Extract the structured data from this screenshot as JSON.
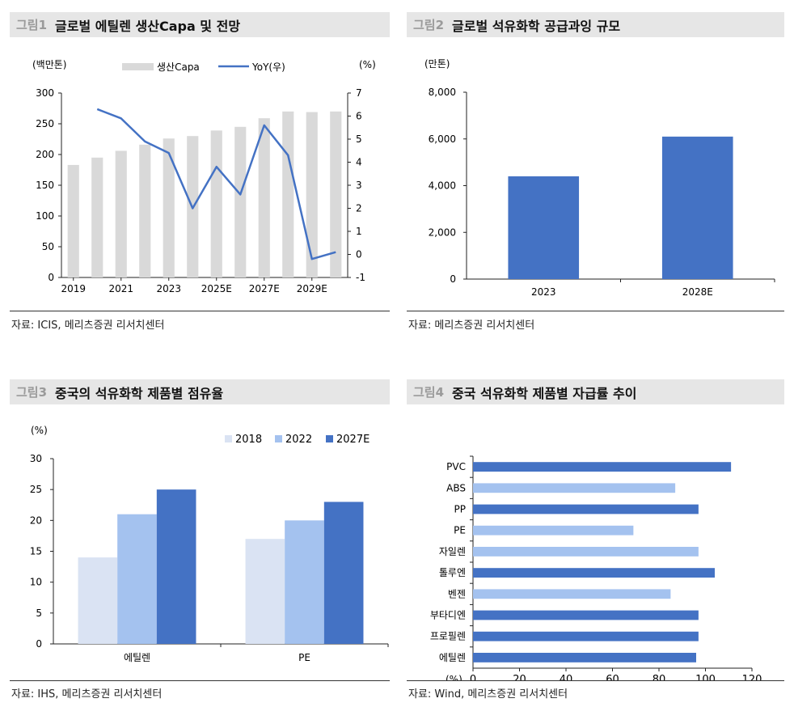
{
  "colors": {
    "capa_bar": "#d9d9d9",
    "yoy_line": "#4472c4",
    "bar_blue": "#4472c4",
    "c2018": "#dae3f3",
    "c2022": "#a4c2ef",
    "c2027": "#4472c4",
    "h_dark": "#4472c4",
    "h_light": "#a4c2ef"
  },
  "panels": [
    {
      "fig_num": "그림1",
      "title": "글로벌 에틸렌 생산Capa 및 전망",
      "source": "자료: ICIS, 메리츠증권 리서치센터"
    },
    {
      "fig_num": "그림2",
      "title": "글로벌 석유화학 공급과잉 규모",
      "source": "자료: 메리츠증권 리서치센터"
    },
    {
      "fig_num": "그림3",
      "title": "중국의 석유화학 제품별 점유율",
      "source": "자료: IHS, 메리츠증권 리서치센터"
    },
    {
      "fig_num": "그림4",
      "title": "중국 석유화학 제품별 자급률 추이",
      "source": "자료: Wind, 메리츠증권 리서치센터"
    }
  ],
  "chart_data": [
    {
      "type": "bar",
      "title": "글로벌 에틸렌 생산Capa 및 전망",
      "ylabel": "(백만톤)",
      "y2label": "(%)",
      "ylim": [
        0,
        300
      ],
      "y2lim": [
        -1,
        7
      ],
      "yticks": [
        0,
        50,
        100,
        150,
        200,
        250,
        300
      ],
      "y2ticks": [
        -1,
        0,
        1,
        2,
        3,
        4,
        5,
        6,
        7
      ],
      "x_tick_labels": [
        "2019",
        "2021",
        "2023",
        "2025E",
        "2027E",
        "2029E"
      ],
      "x_tick_label_positions": [
        2019,
        2021,
        2023,
        2025,
        2027,
        2029
      ],
      "legend_position": "top",
      "series": [
        {
          "name": "생산Capa",
          "type": "bar",
          "x": [
            2019,
            2020,
            2021,
            2022,
            2023,
            2024,
            2025,
            2026,
            2027,
            2028,
            2029,
            2030
          ],
          "values": [
            183,
            195,
            206,
            216,
            226,
            230,
            239,
            245,
            259,
            270,
            269,
            270
          ]
        },
        {
          "name": "YoY(우)",
          "type": "line",
          "axis": "right",
          "x": [
            2020,
            2021,
            2022,
            2023,
            2024,
            2025,
            2026,
            2027,
            2028,
            2029,
            2030
          ],
          "values": [
            6.3,
            5.9,
            4.9,
            4.4,
            2.0,
            3.8,
            2.6,
            5.6,
            4.3,
            -0.2,
            0.1
          ]
        }
      ]
    },
    {
      "type": "bar",
      "title": "글로벌 석유화학 공급과잉 규모",
      "ylabel": "(만톤)",
      "ylim": [
        0,
        8000
      ],
      "yticks": [
        0,
        2000,
        4000,
        6000,
        8000
      ],
      "ytick_labels": [
        "0",
        "2,000",
        "4,000",
        "6,000",
        "8,000"
      ],
      "categories": [
        "2023",
        "2028E"
      ],
      "values": [
        4400,
        6100
      ]
    },
    {
      "type": "bar",
      "title": "중국의 석유화학 제품별 점유율",
      "ylabel": "(%)",
      "ylim": [
        0,
        30
      ],
      "yticks": [
        0,
        5,
        10,
        15,
        20,
        25,
        30
      ],
      "legend_position": "top-right",
      "categories": [
        "에틸렌",
        "PE"
      ],
      "series": [
        {
          "name": "2018",
          "values": [
            14,
            17
          ]
        },
        {
          "name": "2022",
          "values": [
            21,
            20
          ]
        },
        {
          "name": "2027E",
          "values": [
            25,
            23
          ]
        }
      ]
    },
    {
      "type": "bar",
      "orientation": "horizontal",
      "title": "중국 석유화학 제품별 자급률 추이",
      "xlabel": "(%)",
      "xlim": [
        0,
        120
      ],
      "xticks": [
        0,
        20,
        40,
        60,
        80,
        100,
        120
      ],
      "categories": [
        "PVC",
        "ABS",
        "PP",
        "PE",
        "자일렌",
        "톨루엔",
        "벤젠",
        "부타디엔",
        "프로필렌",
        "에틸렌"
      ],
      "values": [
        111,
        87,
        97,
        69,
        97,
        104,
        85,
        97,
        97,
        96
      ],
      "highlight": [
        "dark",
        "light",
        "dark",
        "light",
        "light",
        "dark",
        "light",
        "dark",
        "dark",
        "dark"
      ]
    }
  ]
}
